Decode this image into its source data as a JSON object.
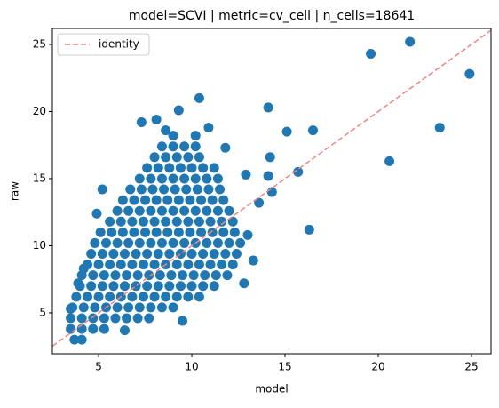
{
  "chart_data": {
    "type": "scatter",
    "title": "model=SCVI | metric=cv_cell | n_cells=18641",
    "x_label": "model",
    "y_label": "raw",
    "color": "#1f77b4",
    "x": [
      3.7,
      4.1,
      3.5,
      4.1,
      4.7,
      5.3,
      3.5,
      4.1,
      4.7,
      5.3,
      5.9,
      6.5,
      7.1,
      7.7,
      3.6,
      4.2,
      4.8,
      5.4,
      6.0,
      6.6,
      7.2,
      7.8,
      8.4,
      9.0,
      3.8,
      4.4,
      5.0,
      5.6,
      6.2,
      6.8,
      7.4,
      8.0,
      8.6,
      9.2,
      9.8,
      10.4,
      4.0,
      4.6,
      5.2,
      5.8,
      6.4,
      7.0,
      7.6,
      8.2,
      8.8,
      9.4,
      10.0,
      10.6,
      11.2,
      4.1,
      4.7,
      5.3,
      5.9,
      6.5,
      7.1,
      7.7,
      8.3,
      8.9,
      9.5,
      10.1,
      10.7,
      11.3,
      11.9,
      4.4,
      5.0,
      5.6,
      6.2,
      6.8,
      7.4,
      8.0,
      8.6,
      9.2,
      9.8,
      10.4,
      11.0,
      11.6,
      12.2,
      4.6,
      5.2,
      5.8,
      6.4,
      7.0,
      7.6,
      8.2,
      8.8,
      9.4,
      10.0,
      10.6,
      11.2,
      11.8,
      12.4,
      4.8,
      5.4,
      6.0,
      6.6,
      7.2,
      7.8,
      8.4,
      9.0,
      9.6,
      10.2,
      10.8,
      11.4,
      12.0,
      12.6,
      5.1,
      5.7,
      6.3,
      6.9,
      7.5,
      8.1,
      8.7,
      9.3,
      9.9,
      10.5,
      11.1,
      11.7,
      12.3,
      5.6,
      6.2,
      6.8,
      7.4,
      8.0,
      8.6,
      9.2,
      9.8,
      10.4,
      11.0,
      11.6,
      12.2,
      6.0,
      6.6,
      7.2,
      7.8,
      8.4,
      9.0,
      9.6,
      10.2,
      10.8,
      11.4,
      12.0,
      6.3,
      6.9,
      7.5,
      8.1,
      8.7,
      9.3,
      9.9,
      10.5,
      11.1,
      11.7,
      6.7,
      7.3,
      7.9,
      8.5,
      9.1,
      9.7,
      10.3,
      10.9,
      11.5,
      7.2,
      7.8,
      8.4,
      9.0,
      9.6,
      10.2,
      10.8,
      11.4,
      7.6,
      8.2,
      8.8,
      9.4,
      10.0,
      10.6,
      11.2,
      8.0,
      8.6,
      9.2,
      9.8,
      10.4,
      8.4,
      9.0,
      9.6,
      10.2,
      9.0,
      10.2,
      3.5,
      4.2,
      3.9,
      5.2,
      4.9,
      12.8,
      13.3,
      13.0,
      13.6,
      12.9,
      8.6,
      10.9,
      11.8,
      6.4,
      9.5,
      7.3,
      19.6,
      21.7,
      24.9,
      23.3,
      20.6,
      16.5,
      15.1,
      14.1,
      10.4,
      9.3,
      8.1,
      16.3,
      15.7,
      14.2,
      14.1,
      14.3
    ],
    "y": [
      3.0,
      3.0,
      3.8,
      3.8,
      3.8,
      3.8,
      4.6,
      4.6,
      4.6,
      4.6,
      4.6,
      4.6,
      4.6,
      4.6,
      5.4,
      5.4,
      5.4,
      5.4,
      5.4,
      5.4,
      5.4,
      5.4,
      5.4,
      5.4,
      6.2,
      6.2,
      6.2,
      6.2,
      6.2,
      6.2,
      6.2,
      6.2,
      6.2,
      6.2,
      6.2,
      6.2,
      7.0,
      7.0,
      7.0,
      7.0,
      7.0,
      7.0,
      7.0,
      7.0,
      7.0,
      7.0,
      7.0,
      7.0,
      7.0,
      7.8,
      7.8,
      7.8,
      7.8,
      7.8,
      7.8,
      7.8,
      7.8,
      7.8,
      7.8,
      7.8,
      7.8,
      7.8,
      7.8,
      8.6,
      8.6,
      8.6,
      8.6,
      8.6,
      8.6,
      8.6,
      8.6,
      8.6,
      8.6,
      8.6,
      8.6,
      8.6,
      8.6,
      9.4,
      9.4,
      9.4,
      9.4,
      9.4,
      9.4,
      9.4,
      9.4,
      9.4,
      9.4,
      9.4,
      9.4,
      9.4,
      9.4,
      10.2,
      10.2,
      10.2,
      10.2,
      10.2,
      10.2,
      10.2,
      10.2,
      10.2,
      10.2,
      10.2,
      10.2,
      10.2,
      10.2,
      11.0,
      11.0,
      11.0,
      11.0,
      11.0,
      11.0,
      11.0,
      11.0,
      11.0,
      11.0,
      11.0,
      11.0,
      11.0,
      11.8,
      11.8,
      11.8,
      11.8,
      11.8,
      11.8,
      11.8,
      11.8,
      11.8,
      11.8,
      11.8,
      11.8,
      12.6,
      12.6,
      12.6,
      12.6,
      12.6,
      12.6,
      12.6,
      12.6,
      12.6,
      12.6,
      12.6,
      13.4,
      13.4,
      13.4,
      13.4,
      13.4,
      13.4,
      13.4,
      13.4,
      13.4,
      13.4,
      14.2,
      14.2,
      14.2,
      14.2,
      14.2,
      14.2,
      14.2,
      14.2,
      14.2,
      15.0,
      15.0,
      15.0,
      15.0,
      15.0,
      15.0,
      15.0,
      15.0,
      15.8,
      15.8,
      15.8,
      15.8,
      15.8,
      15.8,
      15.8,
      16.6,
      16.6,
      16.6,
      16.6,
      16.6,
      17.4,
      17.4,
      17.4,
      17.4,
      18.2,
      18.2,
      5.3,
      8.3,
      7.2,
      14.2,
      12.4,
      7.2,
      8.9,
      10.8,
      13.2,
      15.3,
      18.6,
      18.8,
      17.3,
      3.7,
      4.4,
      19.2,
      24.3,
      25.2,
      22.8,
      18.8,
      16.3,
      18.6,
      18.5,
      20.3,
      21.0,
      20.1,
      19.4,
      11.2,
      15.5,
      16.6,
      15.2,
      14.0
    ],
    "series": [
      {
        "name": "identity",
        "color": "#ff8080",
        "linestyle": "dashed",
        "x": [
          2.52,
          26.05
        ],
        "y": [
          2.52,
          26.05
        ]
      }
    ],
    "xlim": [
      2.52,
      26.05
    ],
    "ylim": [
      1.95,
      26.19
    ],
    "xticks": [
      5,
      10,
      15,
      20,
      25
    ],
    "yticks": [
      5,
      10,
      15,
      20,
      25
    ],
    "legend": "upper left"
  }
}
